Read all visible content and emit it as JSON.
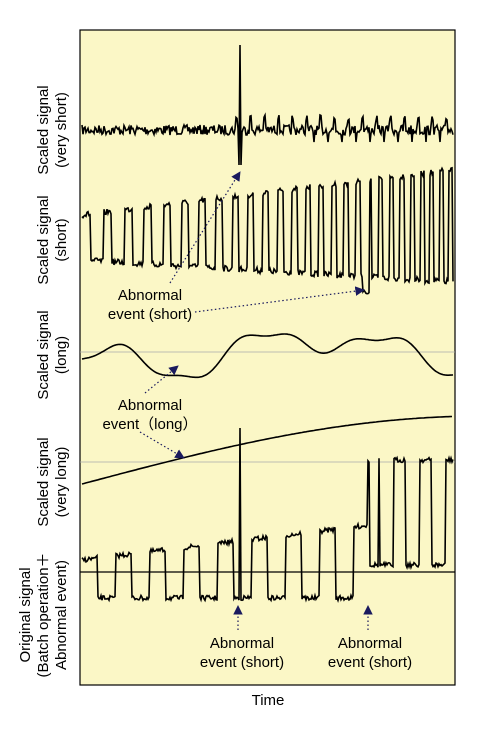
{
  "signal_labels": [
    [
      "Scaled signal",
      "(very short)"
    ],
    [
      "Scaled signal",
      "(short)"
    ],
    [
      "Scaled signal",
      "(long)"
    ],
    [
      "Scaled signal",
      "(very long)"
    ],
    [
      "Original signal",
      "(Batch operation＋",
      "Abnormal event)"
    ]
  ],
  "annotations": [
    [
      "Abnormal",
      "event (short)"
    ],
    [
      "Abnormal",
      "event（long）"
    ],
    [
      "Abnormal",
      "event (short)"
    ],
    [
      "Abnormal",
      "event (short)"
    ]
  ],
  "x_axis_label": "Time"
}
